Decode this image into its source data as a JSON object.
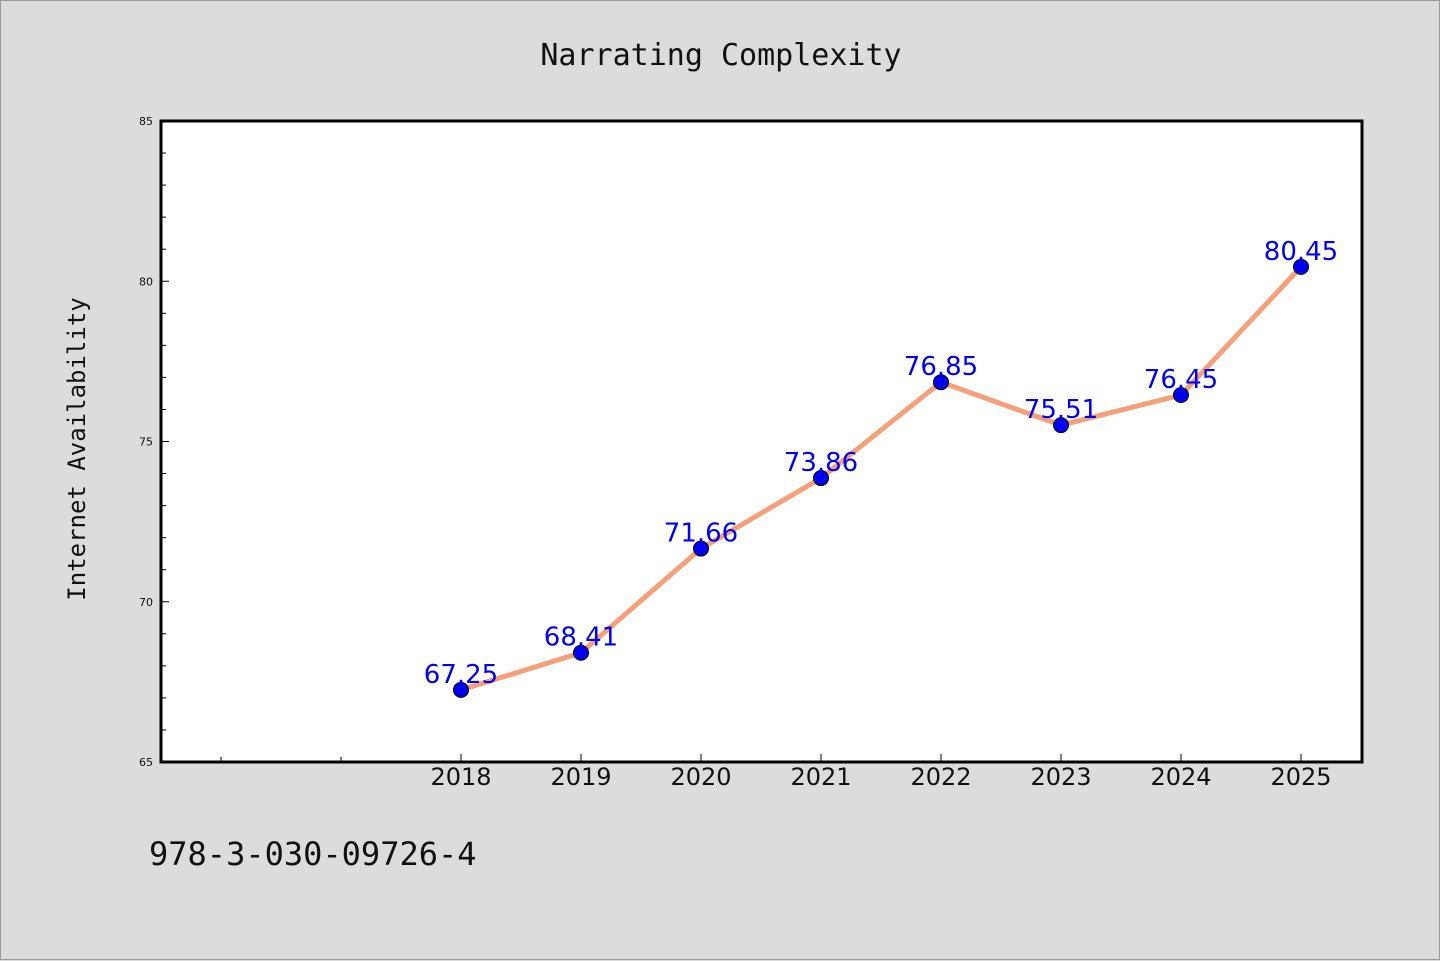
{
  "chart_data": {
    "type": "line",
    "title": "Narrating Complexity",
    "xlabel": "",
    "ylabel": "Internet Availability",
    "categories": [
      "2018",
      "2019",
      "2020",
      "2021",
      "2022",
      "2023",
      "2024",
      "2025"
    ],
    "series": [
      {
        "values": [
          67.25,
          68.41,
          71.66,
          73.86,
          76.85,
          75.51,
          76.45,
          80.45
        ],
        "line_color": "#f4a07a",
        "marker_color": "#0000ee",
        "label_color": "#0000ee"
      }
    ],
    "data_labels": [
      "67.25",
      "68.41",
      "71.66",
      "73.86",
      "76.85",
      "75.51",
      "76.45",
      "80.45"
    ],
    "y_ticks": [
      "65",
      "70",
      "75",
      "80",
      "85"
    ],
    "ylim": [
      65,
      85
    ],
    "grid": false,
    "legend": "none"
  },
  "footer": {
    "isbn": "978-3-030-09726-4"
  }
}
